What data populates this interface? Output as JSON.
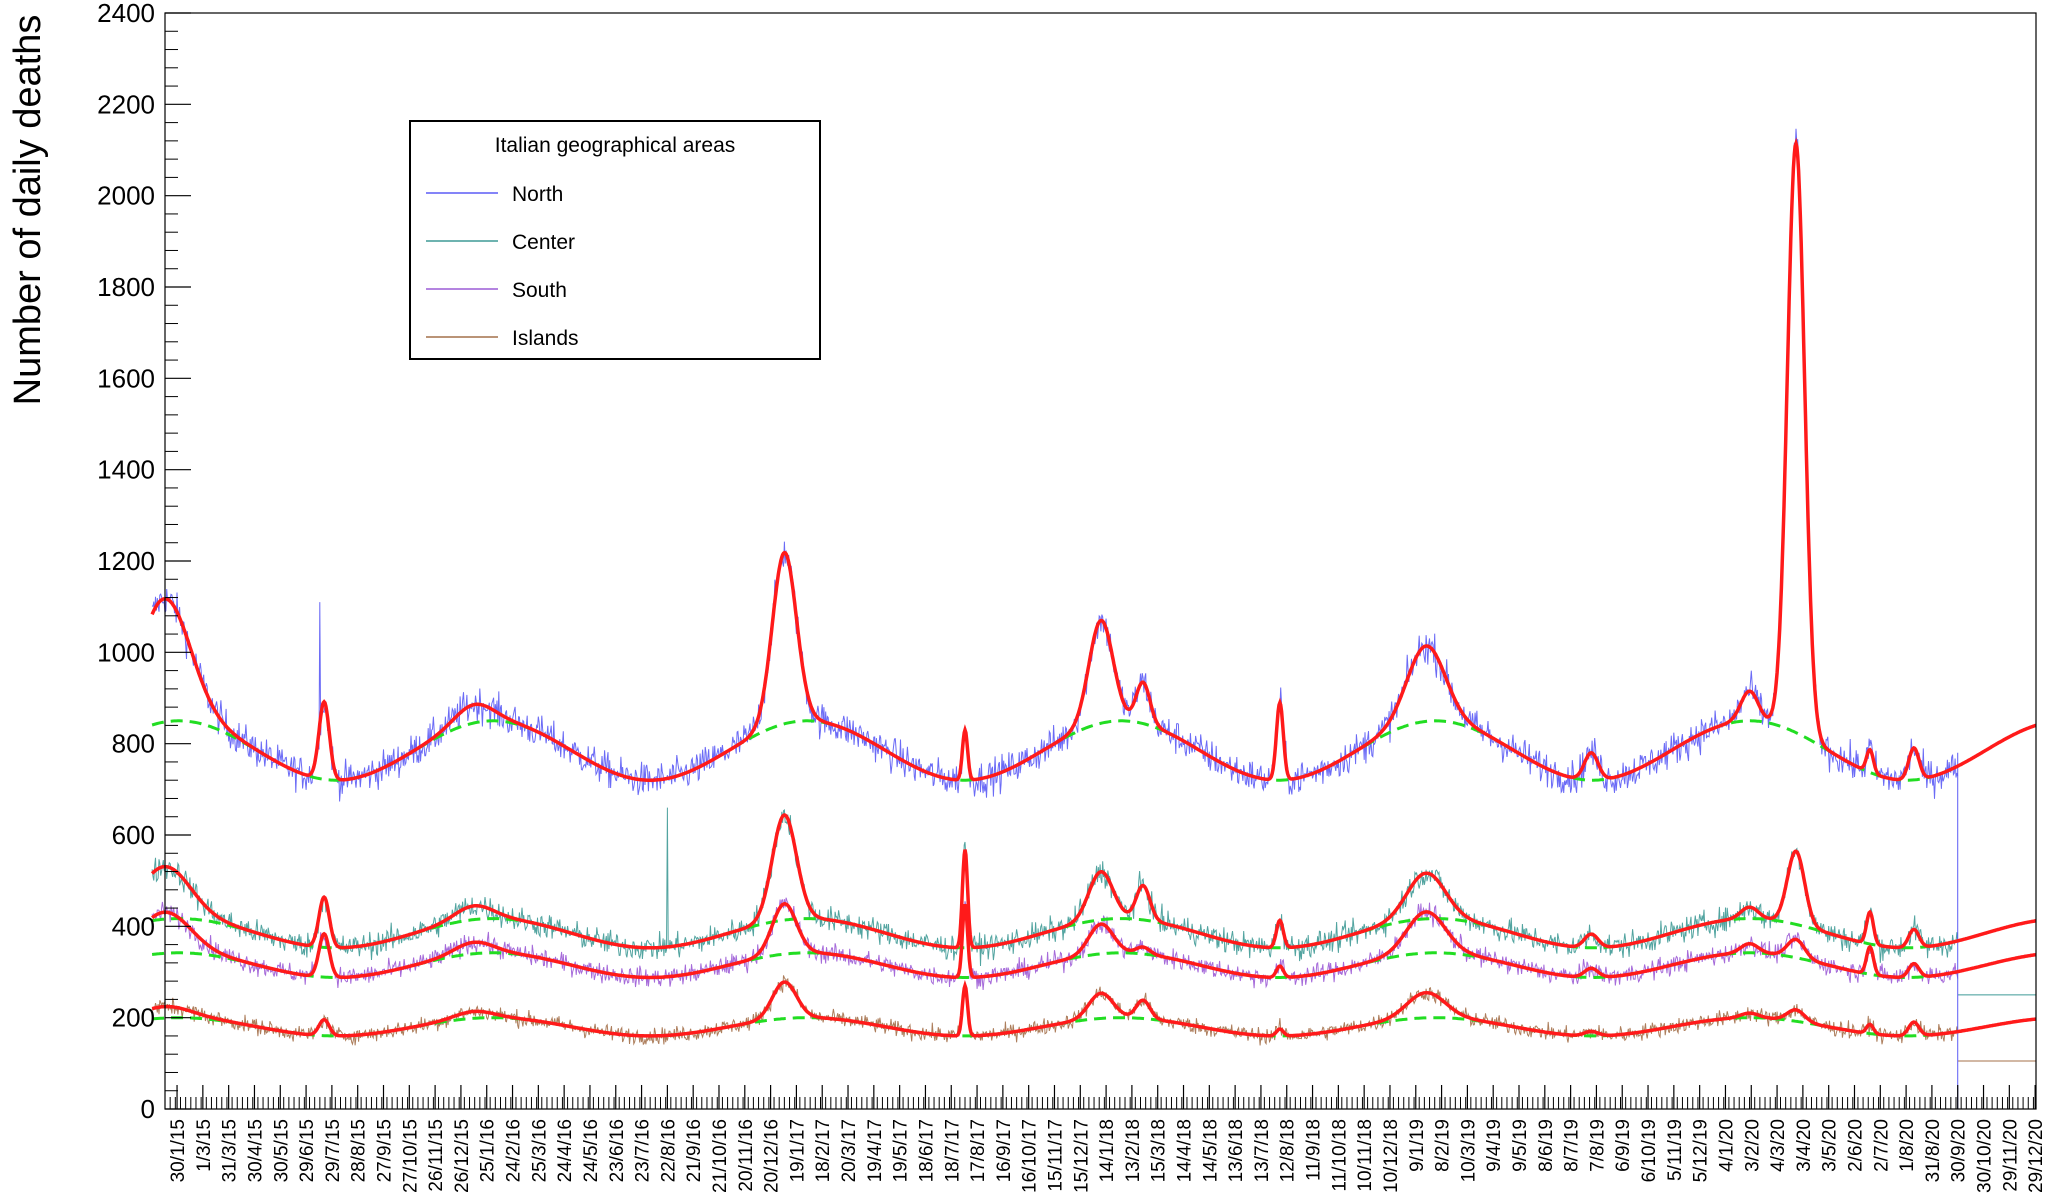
{
  "chart_data": {
    "type": "line",
    "title": "",
    "ylabel": "Number of daily deaths",
    "xlabel": "",
    "ylim": [
      0,
      2400
    ],
    "yticks": [
      0,
      200,
      400,
      600,
      800,
      1000,
      1200,
      1400,
      1600,
      1800,
      2000,
      2200,
      2400
    ],
    "x_tick_labels": [
      "30/1/15",
      "1/3/15",
      "31/3/15",
      "30/4/15",
      "30/5/15",
      "29/6/15",
      "29/7/15",
      "28/8/15",
      "27/9/15",
      "27/10/15",
      "26/11/15",
      "26/12/15",
      "25/1/16",
      "24/2/16",
      "25/3/16",
      "24/4/16",
      "24/5/16",
      "23/6/16",
      "23/7/16",
      "22/8/16",
      "21/9/16",
      "21/10/16",
      "20/11/16",
      "20/12/16",
      "19/1/17",
      "18/2/17",
      "20/3/17",
      "19/4/17",
      "19/5/17",
      "18/6/17",
      "18/7/17",
      "17/8/17",
      "16/9/17",
      "16/10/17",
      "15/11/17",
      "15/12/17",
      "14/1/18",
      "13/2/18",
      "15/3/18",
      "14/4/18",
      "14/5/18",
      "13/6/18",
      "13/7/18",
      "12/8/18",
      "11/9/18",
      "11/10/18",
      "10/11/18",
      "10/12/18",
      "9/1/19",
      "8/2/19",
      "10/3/19",
      "9/4/19",
      "9/5/19",
      "8/6/19",
      "8/7/19",
      "7/8/19",
      "6/9/19",
      "6/10/19",
      "5/11/19",
      "5/12/19",
      "4/1/20",
      "3/2/20",
      "4/3/20",
      "3/4/20",
      "3/5/20",
      "2/6/20",
      "2/7/20",
      "1/8/20",
      "31/8/20",
      "30/9/20",
      "30/10/20",
      "29/11/20",
      "29/12/20"
    ],
    "x_start_index": 29,
    "x_end_index": 2190,
    "data_end_index": 2099,
    "grid": false,
    "legend": {
      "title": "Italian geographical areas",
      "placement": "top-left",
      "entries": [
        {
          "name": "North",
          "color": "#5b5bf5"
        },
        {
          "name": "Center",
          "color": "#3f9a96"
        },
        {
          "name": "South",
          "color": "#9c5bd6"
        },
        {
          "name": "Islands",
          "color": "#a4704a"
        }
      ]
    },
    "series": [
      {
        "name": "North",
        "color": "#5b5bf5",
        "baseline": {
          "mean": 785,
          "amplitude": 65
        },
        "peaks": [
          {
            "date": "15/1/15",
            "height": 270,
            "width": 30
          },
          {
            "date": "20/7/15",
            "height": 170,
            "width": 6
          },
          {
            "date": "10/1/16",
            "height": 40,
            "width": 22
          },
          {
            "date": "5/1/17",
            "height": 375,
            "width": 14
          },
          {
            "date": "3/8/17",
            "height": 110,
            "width": 3
          },
          {
            "date": "8/1/18",
            "height": 225,
            "width": 14
          },
          {
            "date": "26/2/18",
            "height": 90,
            "width": 8
          },
          {
            "date": "4/8/18",
            "height": 170,
            "width": 4
          },
          {
            "date": "21/1/19",
            "height": 165,
            "width": 22
          },
          {
            "date": "1/8/19",
            "height": 60,
            "width": 8
          },
          {
            "date": "1/2/20",
            "height": 65,
            "width": 10
          },
          {
            "date": "26/3/20",
            "height": 1290,
            "width": 10
          },
          {
            "date": "20/6/20",
            "height": 50,
            "width": 4
          },
          {
            "date": "10/8/20",
            "height": 70,
            "width": 6
          }
        ]
      },
      {
        "name": "Center",
        "color": "#3f9a96",
        "baseline": {
          "mean": 385,
          "amplitude": 32
        },
        "peaks": [
          {
            "date": "15/1/15",
            "height": 115,
            "width": 30
          },
          {
            "date": "20/7/15",
            "height": 110,
            "width": 6
          },
          {
            "date": "10/1/16",
            "height": 30,
            "width": 22
          },
          {
            "date": "5/1/17",
            "height": 230,
            "width": 14
          },
          {
            "date": "3/8/17",
            "height": 215,
            "width": 3
          },
          {
            "date": "8/1/18",
            "height": 105,
            "width": 14
          },
          {
            "date": "26/2/18",
            "height": 75,
            "width": 8
          },
          {
            "date": "4/8/18",
            "height": 60,
            "width": 4
          },
          {
            "date": "21/1/19",
            "height": 100,
            "width": 22
          },
          {
            "date": "1/8/19",
            "height": 30,
            "width": 8
          },
          {
            "date": "1/2/20",
            "height": 25,
            "width": 10
          },
          {
            "date": "26/3/20",
            "height": 160,
            "width": 10
          },
          {
            "date": "20/6/20",
            "height": 70,
            "width": 4
          },
          {
            "date": "10/8/20",
            "height": 40,
            "width": 6
          }
        ]
      },
      {
        "name": "South",
        "color": "#9c5bd6",
        "baseline": {
          "mean": 315,
          "amplitude": 27
        },
        "peaks": [
          {
            "date": "15/1/15",
            "height": 90,
            "width": 30
          },
          {
            "date": "20/7/15",
            "height": 95,
            "width": 6
          },
          {
            "date": "10/1/16",
            "height": 25,
            "width": 22
          },
          {
            "date": "5/1/17",
            "height": 110,
            "width": 14
          },
          {
            "date": "3/8/17",
            "height": 160,
            "width": 3
          },
          {
            "date": "8/1/18",
            "height": 65,
            "width": 14
          },
          {
            "date": "26/2/18",
            "height": 15,
            "width": 8
          },
          {
            "date": "4/8/18",
            "height": 25,
            "width": 4
          },
          {
            "date": "21/1/19",
            "height": 90,
            "width": 22
          },
          {
            "date": "1/8/19",
            "height": 20,
            "width": 8
          },
          {
            "date": "1/2/20",
            "height": 20,
            "width": 10
          },
          {
            "date": "26/3/20",
            "height": 40,
            "width": 10
          },
          {
            "date": "20/6/20",
            "height": 60,
            "width": 4
          },
          {
            "date": "10/8/20",
            "height": 30,
            "width": 6
          }
        ]
      },
      {
        "name": "Islands",
        "color": "#a4704a",
        "baseline": {
          "mean": 180,
          "amplitude": 20
        },
        "peaks": [
          {
            "date": "15/1/15",
            "height": 25,
            "width": 30
          },
          {
            "date": "20/7/15",
            "height": 35,
            "width": 6
          },
          {
            "date": "10/1/16",
            "height": 15,
            "width": 22
          },
          {
            "date": "5/1/17",
            "height": 80,
            "width": 14
          },
          {
            "date": "3/8/17",
            "height": 110,
            "width": 3
          },
          {
            "date": "8/1/18",
            "height": 55,
            "width": 14
          },
          {
            "date": "26/2/18",
            "height": 40,
            "width": 8
          },
          {
            "date": "4/8/18",
            "height": 15,
            "width": 4
          },
          {
            "date": "21/1/19",
            "height": 55,
            "width": 22
          },
          {
            "date": "1/8/19",
            "height": 10,
            "width": 8
          },
          {
            "date": "1/2/20",
            "height": 10,
            "width": 10
          },
          {
            "date": "26/3/20",
            "height": 25,
            "width": 10
          },
          {
            "date": "20/6/20",
            "height": 20,
            "width": 4
          },
          {
            "date": "10/8/20",
            "height": 30,
            "width": 6
          }
        ]
      }
    ],
    "fit_color": "#ff1a1a",
    "baseline_color": "#22dd22"
  }
}
